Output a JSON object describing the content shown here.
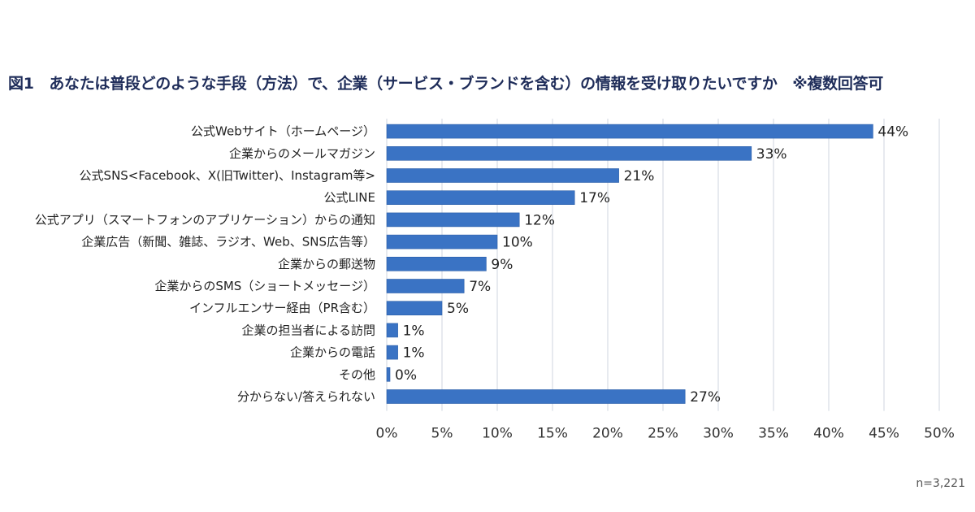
{
  "title": "図1　あなたは普段どのような手段（方法）で、企業（サービス・ブランドを含む）の情報を受け取りたいですか　※複数回答可",
  "note": "n=3,221",
  "colors": {
    "bar": "#3a73c4",
    "grid": "#cfd6df",
    "title": "#1f2d5a"
  },
  "chart_data": {
    "type": "bar",
    "orientation": "horizontal",
    "categories": [
      "公式Webサイト（ホームページ）",
      "企業からのメールマガジン",
      "公式SNS<Facebook、X(旧Twitter)、Instagram等>",
      "公式LINE",
      "公式アプリ（スマートフォンのアプリケーション）からの通知",
      "企業広告（新聞、雑誌、ラジオ、Web、SNS広告等）",
      "企業からの郵送物",
      "企業からのSMS（ショートメッセージ）",
      "インフルエンサー経由（PR含む）",
      "企業の担当者による訪問",
      "企業からの電話",
      "その他",
      "分からない/答えられない"
    ],
    "values": [
      44,
      33,
      21,
      17,
      12,
      10,
      9,
      7,
      5,
      1,
      1,
      0,
      27
    ],
    "value_labels": [
      "44%",
      "33%",
      "21%",
      "17%",
      "12%",
      "10%",
      "9%",
      "7%",
      "5%",
      "1%",
      "1%",
      "0%",
      "27%"
    ],
    "xlim": [
      0,
      50
    ],
    "xticks": [
      "0%",
      "5%",
      "10%",
      "15%",
      "20%",
      "25%",
      "30%",
      "35%",
      "40%",
      "45%",
      "50%"
    ],
    "grid": true,
    "legend": "none"
  }
}
